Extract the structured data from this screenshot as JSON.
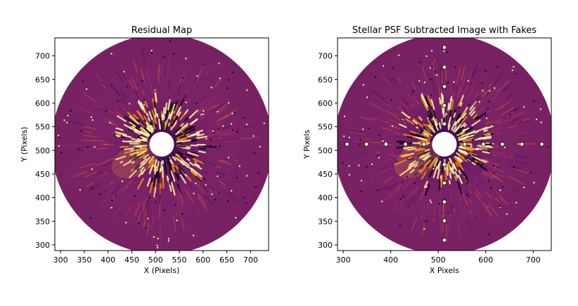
{
  "chart_data": [
    {
      "type": "heatmap",
      "title": "Residual Map",
      "xlabel": "X (Pixels)",
      "ylabel": "Y (Pixels)",
      "xlim": [
        288,
        738
      ],
      "ylim": [
        288,
        738
      ],
      "xticks": [
        300,
        350,
        400,
        450,
        500,
        550,
        600,
        650,
        700
      ],
      "yticks": [
        300,
        350,
        400,
        450,
        500,
        550,
        600,
        650,
        700
      ],
      "xtick_labels": [
        "300",
        "350",
        "400",
        "450",
        "500",
        "550",
        "600",
        "650",
        "700"
      ],
      "ytick_labels": [
        "300",
        "350",
        "400",
        "450",
        "500",
        "550",
        "600",
        "650",
        "700"
      ],
      "colormap": "inferno",
      "center": [
        513,
        513
      ],
      "outer_radius": 232,
      "inner_mask_radius": 26,
      "fake_planets": []
    },
    {
      "type": "heatmap",
      "title": "Stellar PSF Subtracted Image with Fakes",
      "xlabel": "X Pixels",
      "ylabel": "Y Pixels",
      "xlim": [
        288,
        738
      ],
      "ylim": [
        288,
        738
      ],
      "xticks": [
        300,
        400,
        500,
        600,
        700
      ],
      "yticks": [
        300,
        350,
        400,
        450,
        500,
        550,
        600,
        650,
        700
      ],
      "xtick_labels": [
        "300",
        "400",
        "500",
        "600",
        "700"
      ],
      "ytick_labels": [
        "300",
        "350",
        "400",
        "450",
        "500",
        "550",
        "600",
        "650",
        "700"
      ],
      "colormap": "inferno",
      "center": [
        513,
        513
      ],
      "outer_radius": 232,
      "inner_mask_radius": 26,
      "fake_planets": [
        {
          "x": 513,
          "y": 718
        },
        {
          "x": 513,
          "y": 676
        },
        {
          "x": 513,
          "y": 635
        },
        {
          "x": 513,
          "y": 595
        },
        {
          "x": 513,
          "y": 556
        },
        {
          "x": 513,
          "y": 470
        },
        {
          "x": 513,
          "y": 431
        },
        {
          "x": 513,
          "y": 391
        },
        {
          "x": 513,
          "y": 351
        },
        {
          "x": 513,
          "y": 310
        },
        {
          "x": 308,
          "y": 513
        },
        {
          "x": 349,
          "y": 513
        },
        {
          "x": 390,
          "y": 513
        },
        {
          "x": 431,
          "y": 513
        },
        {
          "x": 470,
          "y": 513
        },
        {
          "x": 556,
          "y": 513
        },
        {
          "x": 595,
          "y": 513
        },
        {
          "x": 635,
          "y": 513
        },
        {
          "x": 676,
          "y": 513
        },
        {
          "x": 718,
          "y": 513
        }
      ]
    }
  ]
}
